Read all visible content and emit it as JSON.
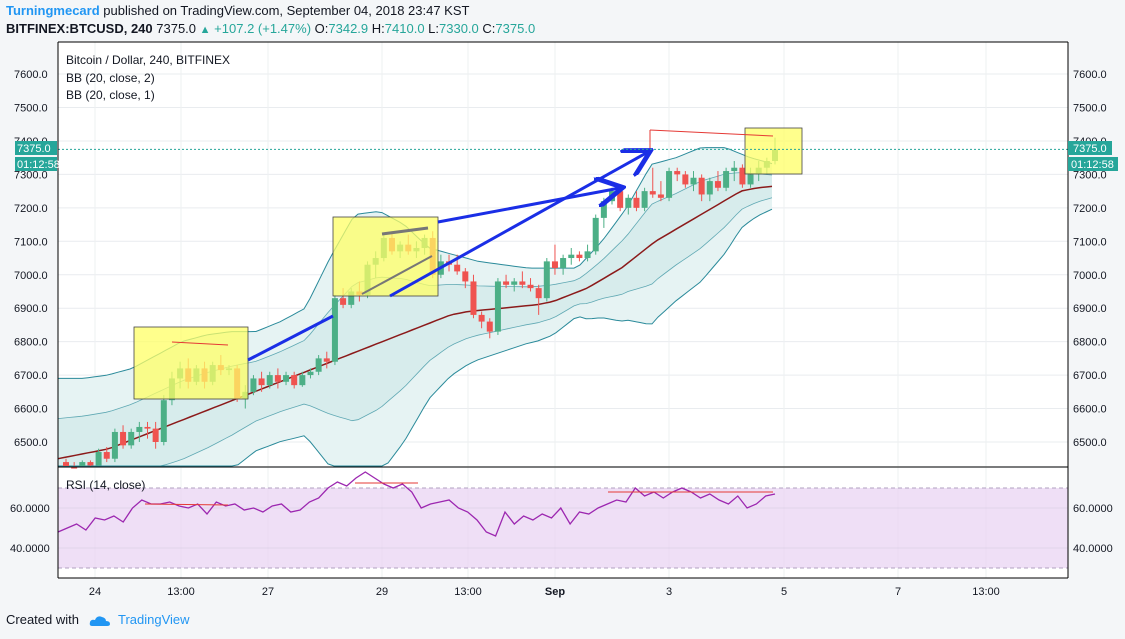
{
  "header": {
    "author": "Turningmecard",
    "published": "published on TradingView.com, September 04, 2018 23:47 KST",
    "symbol": "BITFINEX:BTCUSD, 240",
    "last": "7375.0",
    "change": "+107.2 (+1.47%)",
    "o_label": "O:",
    "o": "7342.9",
    "h_label": "H:",
    "h": "7410.0",
    "l_label": "L:",
    "l": "7330.0",
    "c_label": "C:",
    "c": "7375.0"
  },
  "legend": {
    "title": "Bitcoin / Dollar, 240, BITFINEX",
    "bb1": "BB (20, close, 2)",
    "bb2": "BB (20, close, 1)",
    "rsi": "RSI (14, close)"
  },
  "price_badge": {
    "value": "7375.0",
    "countdown": "01:12:58"
  },
  "footer": {
    "created": "Created with",
    "brand": "TradingView"
  },
  "colors": {
    "up": "#4caf86",
    "down": "#ef5350",
    "bb_band": "#2a8a9a",
    "basis": "#8b1a1a",
    "arrow": "#1a2ee6",
    "highlight": "#ffff66",
    "rsi": "#9c27b0",
    "rsi_fill": "#e9d4f3",
    "accent": "#2196f3",
    "badge": "#26a69a"
  },
  "chart_data": [
    {
      "type": "candlestick",
      "title": "Bitcoin / Dollar, 240, BITFINEX",
      "xlabels": [
        "24",
        "13:00",
        "27",
        "29",
        "13:00",
        "Sep",
        "3",
        "5",
        "7",
        "13:00"
      ],
      "y_ticks": [
        "6500.0",
        "6600.0",
        "6700.0",
        "6800.0",
        "6900.0",
        "7000.0",
        "7100.0",
        "7200.0",
        "7300.0",
        "7400.0",
        "7500.0",
        "7600.0"
      ],
      "ylim": [
        6430,
        7650
      ],
      "grid": true,
      "candles": [
        [
          6440,
          6450,
          6430,
          6425
        ],
        [
          6425,
          6440,
          6410,
          6420
        ],
        [
          6420,
          6445,
          6400,
          6440
        ],
        [
          6440,
          6445,
          6420,
          6430
        ],
        [
          6430,
          6480,
          6425,
          6470
        ],
        [
          6470,
          6485,
          6440,
          6450
        ],
        [
          6450,
          6540,
          6440,
          6530
        ],
        [
          6530,
          6550,
          6480,
          6490
        ],
        [
          6490,
          6540,
          6480,
          6530
        ],
        [
          6530,
          6560,
          6500,
          6545
        ],
        [
          6545,
          6560,
          6510,
          6540
        ],
        [
          6540,
          6560,
          6480,
          6500
        ],
        [
          6500,
          6640,
          6490,
          6625
        ],
        [
          6625,
          6710,
          6610,
          6690
        ],
        [
          6690,
          6740,
          6660,
          6720
        ],
        [
          6720,
          6750,
          6660,
          6680
        ],
        [
          6680,
          6730,
          6670,
          6720
        ],
        [
          6720,
          6740,
          6660,
          6680
        ],
        [
          6680,
          6740,
          6670,
          6730
        ],
        [
          6730,
          6760,
          6700,
          6715
        ],
        [
          6715,
          6730,
          6700,
          6720
        ],
        [
          6720,
          6730,
          6620,
          6630
        ],
        [
          6630,
          6670,
          6600,
          6650
        ],
        [
          6650,
          6700,
          6640,
          6690
        ],
        [
          6690,
          6710,
          6650,
          6670
        ],
        [
          6670,
          6710,
          6660,
          6700
        ],
        [
          6700,
          6720,
          6660,
          6680
        ],
        [
          6680,
          6710,
          6670,
          6700
        ],
        [
          6700,
          6710,
          6660,
          6670
        ],
        [
          6670,
          6710,
          6665,
          6700
        ],
        [
          6700,
          6720,
          6690,
          6710
        ],
        [
          6710,
          6760,
          6700,
          6750
        ],
        [
          6750,
          6770,
          6720,
          6740
        ],
        [
          6740,
          6940,
          6730,
          6930
        ],
        [
          6930,
          6960,
          6900,
          6910
        ],
        [
          6910,
          6960,
          6900,
          6950
        ],
        [
          6950,
          6980,
          6920,
          6940
        ],
        [
          6940,
          7040,
          6930,
          7030
        ],
        [
          7030,
          7070,
          6990,
          7050
        ],
        [
          7050,
          7120,
          7040,
          7110
        ],
        [
          7110,
          7130,
          7060,
          7070
        ],
        [
          7070,
          7100,
          7050,
          7090
        ],
        [
          7090,
          7120,
          7060,
          7070
        ],
        [
          7070,
          7100,
          7050,
          7080
        ],
        [
          7080,
          7120,
          7060,
          7110
        ],
        [
          7110,
          7130,
          6990,
          7000
        ],
        [
          7000,
          7060,
          6990,
          7040
        ],
        [
          7040,
          7060,
          7010,
          7030
        ],
        [
          7030,
          7060,
          7000,
          7010
        ],
        [
          7010,
          7020,
          6960,
          6980
        ],
        [
          6980,
          7000,
          6870,
          6880
        ],
        [
          6880,
          6890,
          6840,
          6860
        ],
        [
          6860,
          6870,
          6810,
          6830
        ],
        [
          6830,
          6990,
          6820,
          6980
        ],
        [
          6980,
          7000,
          6960,
          6970
        ],
        [
          6970,
          6990,
          6950,
          6980
        ],
        [
          6980,
          7010,
          6960,
          6970
        ],
        [
          6970,
          6990,
          6950,
          6960
        ],
        [
          6960,
          6970,
          6880,
          6930
        ],
        [
          6930,
          7050,
          6920,
          7040
        ],
        [
          7040,
          7090,
          7000,
          7020
        ],
        [
          7020,
          7060,
          7000,
          7050
        ],
        [
          7050,
          7080,
          7030,
          7060
        ],
        [
          7060,
          7070,
          7040,
          7050
        ],
        [
          7050,
          7090,
          7040,
          7070
        ],
        [
          7070,
          7180,
          7060,
          7170
        ],
        [
          7170,
          7230,
          7140,
          7220
        ],
        [
          7220,
          7260,
          7210,
          7250
        ],
        [
          7250,
          7260,
          7190,
          7200
        ],
        [
          7200,
          7240,
          7180,
          7230
        ],
        [
          7230,
          7250,
          7190,
          7200
        ],
        [
          7200,
          7260,
          7190,
          7250
        ],
        [
          7250,
          7320,
          7230,
          7240
        ],
        [
          7240,
          7280,
          7220,
          7230
        ],
        [
          7230,
          7320,
          7220,
          7310
        ],
        [
          7310,
          7320,
          7280,
          7300
        ],
        [
          7300,
          7310,
          7260,
          7270
        ],
        [
          7270,
          7310,
          7250,
          7290
        ],
        [
          7290,
          7300,
          7220,
          7240
        ],
        [
          7240,
          7290,
          7220,
          7280
        ],
        [
          7280,
          7310,
          7250,
          7260
        ],
        [
          7260,
          7320,
          7250,
          7310
        ],
        [
          7310,
          7340,
          7280,
          7320
        ],
        [
          7320,
          7330,
          7260,
          7270
        ],
        [
          7270,
          7320,
          7260,
          7300
        ],
        [
          7300,
          7340,
          7280,
          7320
        ],
        [
          7320,
          7350,
          7300,
          7340
        ],
        [
          7340,
          7410,
          7330,
          7375
        ]
      ],
      "basis_series": {
        "name": "BB (20, close, 2) basis",
        "values": [
          6450,
          6460,
          6470,
          6480,
          6500,
          6520,
          6540,
          6560,
          6580,
          6600,
          6620,
          6640,
          6660,
          6680,
          6700,
          6720,
          6740,
          6760,
          6780,
          6800,
          6820,
          6840,
          6860,
          6880,
          6890,
          6895,
          6900,
          6905,
          6910,
          6920,
          6940,
          6960,
          6990,
          7020,
          7060,
          7100,
          7130,
          7160,
          7190,
          7220,
          7250,
          7260,
          7265
        ]
      },
      "bb2_upper": [
        6690,
        6690,
        6700,
        6720,
        6760,
        6800,
        6820,
        6830,
        6830,
        6860,
        6900,
        7050,
        7180,
        7190,
        7150,
        7080,
        7060,
        7040,
        7030,
        7020,
        7020,
        7020,
        7100,
        7200,
        7330,
        7350,
        7380,
        7380,
        7350,
        7330
      ]
    },
    {
      "type": "line",
      "name": "RSI (14, close)",
      "y_ticks": [
        "40.0000",
        "60.0000"
      ],
      "ylim": [
        25,
        80
      ],
      "band": [
        30,
        70
      ],
      "values": [
        48,
        50,
        52,
        49,
        55,
        54,
        56,
        53,
        60,
        64,
        62,
        62,
        63,
        61,
        60,
        62,
        57,
        63,
        61,
        62,
        59,
        60,
        58,
        61,
        62,
        58,
        59,
        63,
        65,
        70,
        73,
        71,
        75,
        78,
        75,
        72,
        70,
        72,
        68,
        60,
        62,
        63,
        64,
        60,
        58,
        54,
        48,
        46,
        58,
        52,
        56,
        54,
        57,
        55,
        60,
        52,
        58,
        57,
        60,
        62,
        64,
        63,
        70,
        66,
        68,
        65,
        68,
        70,
        68,
        65,
        67,
        64,
        62,
        66,
        60,
        62,
        66,
        67
      ]
    }
  ]
}
